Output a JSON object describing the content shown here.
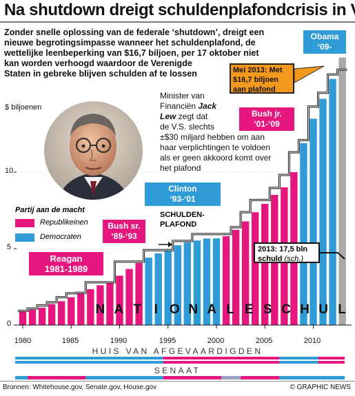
{
  "title": "Na shutdown dreigt schuldenplafondcrisis in V.S.",
  "lead_lines": [
    "Zonder snelle oplossing van de federale ‘shutdown’, dreigt een",
    "nieuwe begrotingsimpasse wanneer het schuldenplafond, de",
    "wettelijke leenbeperking van $16,7 biljoen, per 17 oktober niet",
    "kan worden verhoogd waardoor de Verenigde",
    "Staten in gebreke blijven schulden af te lossen"
  ],
  "quote": {
    "line1": "Minister van",
    "line2_prefix": "Financiën ",
    "name1": "Jack",
    "name2": "Lew",
    "line3_suffix": " zegt dat",
    "rest": [
      "de V.S. slechts",
      "±$30 miljard hebben om aan",
      "haar verplichtingen te voldoen",
      "als er geen akkoord komt over",
      "het plafond"
    ]
  },
  "legend": {
    "title": "Partij aan de macht",
    "republican": "Republikeinen",
    "democrat": "Democraten"
  },
  "presidents": [
    {
      "lines": [
        "Obama",
        "‘09-"
      ],
      "party": "democrat"
    },
    {
      "lines": [
        "Bush jr.",
        "‘01-‘09"
      ],
      "party": "republican"
    },
    {
      "lines": [
        "Clinton",
        "‘93-‘01"
      ],
      "party": "democrat"
    },
    {
      "lines": [
        "Bush sr.",
        "‘89-‘93"
      ],
      "party": "republican"
    },
    {
      "lines": [
        "Reagan",
        "1981-1989"
      ],
      "party": "republican"
    }
  ],
  "annotations": {
    "plafond": [
      "SCHULDEN-",
      "PLAFOND"
    ],
    "schuld_2013": {
      "main": "2013: 17,5 bln",
      "sub_bold": "schuld",
      "sub_italic": "(sch.)"
    },
    "mei_2013": [
      "Mei 2013: Met",
      "$16,7 biljoen",
      "aan plafond"
    ]
  },
  "house_label": "HUIS VAN AFGEVAARDIGDEN",
  "senate_label": "SENAAT",
  "sources": "Bronnen: Whitehouse.gov, Senate.gov, House.gov",
  "credit": "© GRAPHIC NEWS",
  "colors": {
    "republican": "#e5177e",
    "democrat": "#2f9bd7",
    "estimate": "#a8a8a8",
    "split": "#9aa0c8",
    "ceiling_line": "#111111",
    "callout_orange": "#f39a1e"
  },
  "chart_data": {
    "type": "bar",
    "title": "NATIONALE SCHULD",
    "ylabel": "$ biljoenen",
    "ylim": [
      0,
      16.7
    ],
    "yticks": [
      0,
      5,
      10
    ],
    "xticks": [
      1980,
      1985,
      1990,
      1995,
      2000,
      2005,
      2010
    ],
    "series": [
      {
        "name": "Nationale schuld",
        "x": [
          1980,
          1981,
          1982,
          1983,
          1984,
          1985,
          1986,
          1987,
          1988,
          1989,
          1990,
          1991,
          1992,
          1993,
          1994,
          1995,
          1996,
          1997,
          1998,
          1999,
          2000,
          2001,
          2002,
          2003,
          2004,
          2005,
          2006,
          2007,
          2008,
          2009,
          2010,
          2011,
          2012,
          2013
        ],
        "values": [
          0.91,
          1.0,
          1.14,
          1.37,
          1.56,
          1.82,
          2.12,
          2.35,
          2.6,
          2.86,
          3.23,
          3.67,
          4.06,
          4.41,
          4.69,
          4.97,
          5.22,
          5.41,
          5.53,
          5.66,
          5.67,
          5.81,
          6.23,
          6.78,
          7.38,
          7.93,
          8.51,
          9.01,
          10.0,
          11.9,
          13.5,
          14.8,
          16.1,
          17.5
        ],
        "party": [
          "R",
          "R",
          "R",
          "R",
          "R",
          "R",
          "R",
          "R",
          "R",
          "R",
          "R",
          "R",
          "R",
          "D",
          "D",
          "D",
          "D",
          "D",
          "D",
          "D",
          "D",
          "R",
          "R",
          "R",
          "R",
          "R",
          "R",
          "R",
          "R",
          "D",
          "D",
          "D",
          "D",
          "D"
        ],
        "estimated_last": true
      },
      {
        "name": "Schuldenplafond",
        "x": [
          1980,
          1981,
          1982,
          1983,
          1984,
          1985,
          1986,
          1987,
          1988,
          1989,
          1990,
          1991,
          1992,
          1993,
          1994,
          1995,
          1996,
          1997,
          1998,
          1999,
          2000,
          2001,
          2002,
          2003,
          2004,
          2005,
          2006,
          2007,
          2008,
          2009,
          2010,
          2011,
          2012,
          2013
        ],
        "values": [
          0.93,
          1.08,
          1.29,
          1.49,
          1.82,
          2.08,
          2.11,
          2.8,
          2.8,
          2.8,
          4.15,
          4.15,
          4.15,
          4.9,
          4.9,
          4.9,
          5.5,
          5.5,
          5.95,
          5.95,
          5.95,
          5.95,
          6.4,
          7.38,
          8.18,
          8.18,
          8.97,
          9.82,
          11.3,
          12.1,
          14.29,
          15.19,
          16.39,
          16.7
        ]
      }
    ],
    "congress": {
      "house": [
        {
          "from": 1979,
          "to": 1995,
          "party": "D"
        },
        {
          "from": 1995,
          "to": 2007,
          "party": "R"
        },
        {
          "from": 2007,
          "to": 2011,
          "party": "D"
        },
        {
          "from": 2011,
          "to": 2014,
          "party": "R"
        }
      ],
      "senate": [
        {
          "from": 1979,
          "to": 1981,
          "party": "D"
        },
        {
          "from": 1981,
          "to": 1987,
          "party": "R"
        },
        {
          "from": 1987,
          "to": 1995,
          "party": "D"
        },
        {
          "from": 1995,
          "to": 2001,
          "party": "R"
        },
        {
          "from": 2001,
          "to": 2003,
          "party": "split"
        },
        {
          "from": 2003,
          "to": 2007,
          "party": "R"
        },
        {
          "from": 2007,
          "to": 2014,
          "party": "D"
        }
      ]
    }
  }
}
